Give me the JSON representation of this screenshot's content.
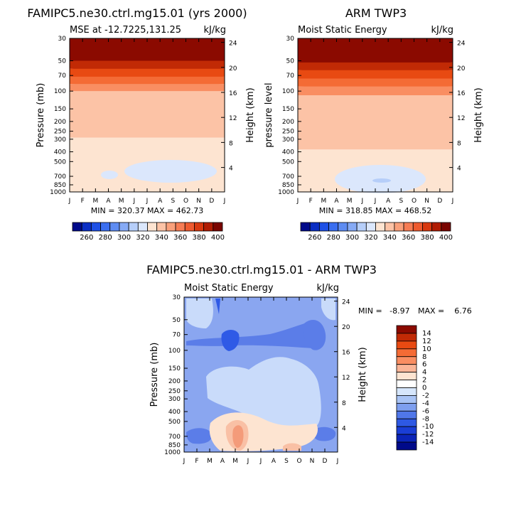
{
  "chart_data": [
    {
      "type": "heatmap",
      "title": "FAMIPC5.ne30.ctrl.mg15.01 (yrs 2000)",
      "subtitle_left": "MSE at -12.7225,131.25",
      "subtitle_right": "kJ/kg",
      "ylabel": "Pressure (mb)",
      "ylabel_right": "Height (km)",
      "x_ticks": [
        "J",
        "F",
        "M",
        "A",
        "M",
        "J",
        "J",
        "A",
        "S",
        "O",
        "N",
        "D",
        "J"
      ],
      "pressure_ticks": [
        30,
        50,
        70,
        100,
        150,
        200,
        250,
        300,
        400,
        500,
        700,
        850,
        1000
      ],
      "height_ticks": [
        24,
        20,
        16,
        12,
        8,
        4
      ],
      "stats": "MIN = 320.37  MAX = 462.73",
      "colorbar_labels": [
        "260",
        "280",
        "300",
        "320",
        "340",
        "360",
        "380",
        "400"
      ],
      "bands": [
        {
          "level_kjkg": 405,
          "color": "#8b0a00",
          "p_top": 30,
          "p_bottom": 50
        },
        {
          "level_kjkg": 390,
          "color": "#c12a05",
          "p_top": 50,
          "p_bottom": 60
        },
        {
          "level_kjkg": 375,
          "color": "#e84a12",
          "p_top": 60,
          "p_bottom": 72
        },
        {
          "level_kjkg": 360,
          "color": "#f46b35",
          "p_top": 72,
          "p_bottom": 85
        },
        {
          "level_kjkg": 350,
          "color": "#f98e62",
          "p_top": 85,
          "p_bottom": 100
        },
        {
          "level_kjkg": 342,
          "color": "#fcc3a6",
          "p_top": 100,
          "p_bottom": 290
        },
        {
          "level_kjkg": 335,
          "color": "#fde4d1",
          "p_top": 290,
          "p_bottom": 1000
        }
      ]
    },
    {
      "type": "heatmap",
      "title": "ARM TWP3",
      "subtitle_left": "Moist Static Energy",
      "subtitle_right": "kJ/kg",
      "ylabel": "pressure level",
      "ylabel_right": "Height (km)",
      "x_ticks": [
        "J",
        "F",
        "M",
        "A",
        "M",
        "J",
        "J",
        "A",
        "S",
        "O",
        "N",
        "D",
        "J"
      ],
      "pressure_ticks": [
        30,
        50,
        70,
        100,
        150,
        200,
        250,
        300,
        400,
        500,
        700,
        850,
        1000
      ],
      "height_ticks": [
        24,
        20,
        16,
        12,
        8,
        4
      ],
      "stats": "MIN = 318.85  MAX = 468.52",
      "colorbar_labels": [
        "260",
        "280",
        "300",
        "320",
        "340",
        "360",
        "380",
        "400"
      ],
      "bands": [
        {
          "level_kjkg": 405,
          "color": "#8b0a00",
          "p_top": 30,
          "p_bottom": 52
        },
        {
          "level_kjkg": 390,
          "color": "#c12a05",
          "p_top": 52,
          "p_bottom": 62
        },
        {
          "level_kjkg": 375,
          "color": "#e84a12",
          "p_top": 62,
          "p_bottom": 75
        },
        {
          "level_kjkg": 360,
          "color": "#f46b35",
          "p_top": 75,
          "p_bottom": 90
        },
        {
          "level_kjkg": 350,
          "color": "#f98e62",
          "p_top": 90,
          "p_bottom": 110
        },
        {
          "level_kjkg": 342,
          "color": "#fcc3a6",
          "p_top": 110,
          "p_bottom": 380
        },
        {
          "level_kjkg": 335,
          "color": "#fde4d1",
          "p_top": 380,
          "p_bottom": 1000
        }
      ]
    },
    {
      "type": "heatmap",
      "title": "FAMIPC5.ne30.ctrl.mg15.01 - ARM TWP3",
      "subtitle_left": "Moist Static Energy",
      "subtitle_right": "kJ/kg",
      "ylabel": "Pressure (mb)",
      "ylabel_right": "Height (km)",
      "x_ticks": [
        "J",
        "F",
        "M",
        "A",
        "M",
        "J",
        "J",
        "A",
        "S",
        "O",
        "N",
        "D",
        "J"
      ],
      "pressure_ticks": [
        30,
        50,
        70,
        100,
        150,
        200,
        250,
        300,
        400,
        500,
        700,
        850,
        1000
      ],
      "height_ticks": [
        24,
        20,
        16,
        12,
        8,
        4
      ],
      "stats_min": "MIN =   -8.97",
      "stats_max": "MAX =    6.76",
      "colorbar_labels": [
        "14",
        "12",
        "10",
        "8",
        "6",
        "4",
        "2",
        "0",
        "-2",
        "-4",
        "-6",
        "-8",
        "-10",
        "-12",
        "-14"
      ],
      "background_level": -4,
      "regions": [
        {
          "level": -4,
          "color": "#8aa6f0"
        },
        {
          "level": -2,
          "color": "#c9dbfa"
        },
        {
          "level": -6,
          "color": "#5b7de8"
        },
        {
          "level": -8,
          "color": "#2f5ae6"
        },
        {
          "level": 0,
          "color": "#fde4d1"
        },
        {
          "level": 2,
          "color": "#f9c0a5"
        },
        {
          "level": 4,
          "color": "#f49b7a"
        }
      ]
    }
  ],
  "colors": {
    "mse_colorbar": [
      "#000a8a",
      "#0a2ec4",
      "#1e50e6",
      "#3a6ef0",
      "#5e8cf2",
      "#86aaf5",
      "#b6cef9",
      "#dbe7fc",
      "#fde4d1",
      "#fcc3a6",
      "#f9a07b",
      "#f67c54",
      "#ee5a2f",
      "#d8380f",
      "#b01c03",
      "#7a0400"
    ],
    "diff_colorbar": [
      "#8b0a00",
      "#c12a05",
      "#e84a12",
      "#f46b35",
      "#f98e62",
      "#fab597",
      "#fde4d1",
      "#ffffff",
      "#d6e6fb",
      "#a9c4f5",
      "#7e9fef",
      "#5077e9",
      "#2e59e4",
      "#1a3ed6",
      "#0b24b8",
      "#000a8a"
    ]
  }
}
